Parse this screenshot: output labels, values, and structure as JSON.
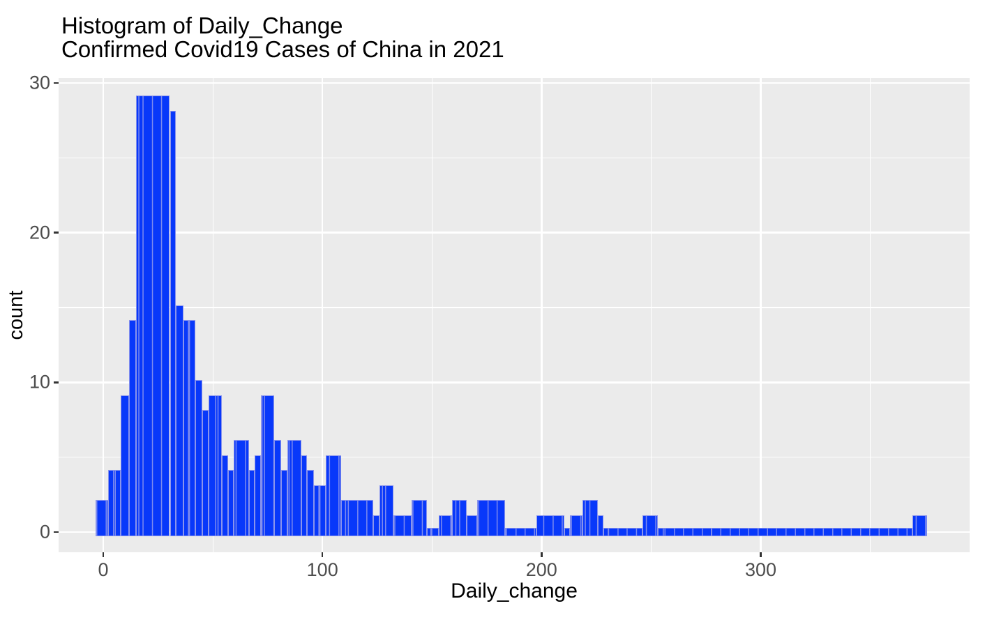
{
  "figure": {
    "title_line1": "Histogram of Daily_Change",
    "title_line2": "Confirmed Covid19 Cases of China in 2021",
    "x_axis_title": "Daily_change",
    "y_axis_title": "count"
  },
  "chart_data": {
    "type": "bar",
    "subtype": "histogram",
    "title": "Histogram of Daily_Change",
    "subtitle": "Confirmed Covid19 Cases of China in 2021",
    "xlabel": "Daily_change",
    "ylabel": "count",
    "x_ticks": [
      0,
      100,
      200,
      300
    ],
    "x_minor_ticks": [
      50,
      150,
      250,
      350
    ],
    "y_ticks": [
      0,
      10,
      20,
      30
    ],
    "y_minor_ticks": [
      5,
      15,
      25
    ],
    "xlim": [
      -20,
      395
    ],
    "ylim": [
      0,
      30.3
    ],
    "grid": true,
    "legend_position": "none",
    "bins": [
      {
        "x0": -3.6,
        "x1": 2.2,
        "count": 2
      },
      {
        "x0": 2.2,
        "x1": 8.1,
        "count": 4
      },
      {
        "x0": 8.1,
        "x1": 11.8,
        "count": 9
      },
      {
        "x0": 11.8,
        "x1": 15.0,
        "count": 14
      },
      {
        "x0": 15.0,
        "x1": 30.4,
        "count": 29
      },
      {
        "x0": 30.4,
        "x1": 33.0,
        "count": 28
      },
      {
        "x0": 33.0,
        "x1": 36.7,
        "count": 15
      },
      {
        "x0": 36.7,
        "x1": 42.0,
        "count": 14
      },
      {
        "x0": 42.0,
        "x1": 45.2,
        "count": 10
      },
      {
        "x0": 45.2,
        "x1": 47.9,
        "count": 8
      },
      {
        "x0": 47.9,
        "x1": 54.2,
        "count": 9
      },
      {
        "x0": 54.2,
        "x1": 56.9,
        "count": 5
      },
      {
        "x0": 56.9,
        "x1": 59.6,
        "count": 4
      },
      {
        "x0": 59.6,
        "x1": 66.5,
        "count": 6
      },
      {
        "x0": 66.5,
        "x1": 69.1,
        "count": 4
      },
      {
        "x0": 69.1,
        "x1": 71.8,
        "count": 5
      },
      {
        "x0": 71.8,
        "x1": 78.1,
        "count": 9
      },
      {
        "x0": 78.1,
        "x1": 81.1,
        "count": 6
      },
      {
        "x0": 81.1,
        "x1": 84.0,
        "count": 4
      },
      {
        "x0": 84.0,
        "x1": 90.3,
        "count": 6
      },
      {
        "x0": 90.3,
        "x1": 93.0,
        "count": 5
      },
      {
        "x0": 93.0,
        "x1": 96.2,
        "count": 4
      },
      {
        "x0": 96.2,
        "x1": 101.5,
        "count": 3
      },
      {
        "x0": 101.5,
        "x1": 108.4,
        "count": 5
      },
      {
        "x0": 108.4,
        "x1": 123.2,
        "count": 2
      },
      {
        "x0": 123.2,
        "x1": 125.9,
        "count": 1
      },
      {
        "x0": 125.9,
        "x1": 132.3,
        "count": 3
      },
      {
        "x0": 132.3,
        "x1": 140.8,
        "count": 1
      },
      {
        "x0": 140.8,
        "x1": 147.7,
        "count": 2
      },
      {
        "x0": 147.7,
        "x1": 153.0,
        "count": 0
      },
      {
        "x0": 153.0,
        "x1": 159.2,
        "count": 1
      },
      {
        "x0": 159.2,
        "x1": 165.7,
        "count": 2
      },
      {
        "x0": 165.7,
        "x1": 170.5,
        "count": 1
      },
      {
        "x0": 170.5,
        "x1": 183.2,
        "count": 2
      },
      {
        "x0": 183.2,
        "x1": 197.6,
        "count": 0
      },
      {
        "x0": 197.6,
        "x1": 210.3,
        "count": 1
      },
      {
        "x0": 210.3,
        "x1": 213.0,
        "count": 0
      },
      {
        "x0": 213.0,
        "x1": 218.8,
        "count": 1
      },
      {
        "x0": 218.8,
        "x1": 225.7,
        "count": 2
      },
      {
        "x0": 225.7,
        "x1": 228.3,
        "count": 1
      },
      {
        "x0": 228.3,
        "x1": 245.9,
        "count": 0
      },
      {
        "x0": 245.9,
        "x1": 252.9,
        "count": 1
      },
      {
        "x0": 252.9,
        "x1": 369.2,
        "count": 0
      },
      {
        "x0": 369.2,
        "x1": 375.9,
        "count": 1
      }
    ],
    "colors": {
      "bar_fill": "#0838fa",
      "bar_edge": "#8a94ec",
      "panel_background": "#ebebeb",
      "gridline": "#ffffff",
      "tick_label": "#4d4d4d",
      "text": "#000000"
    }
  }
}
